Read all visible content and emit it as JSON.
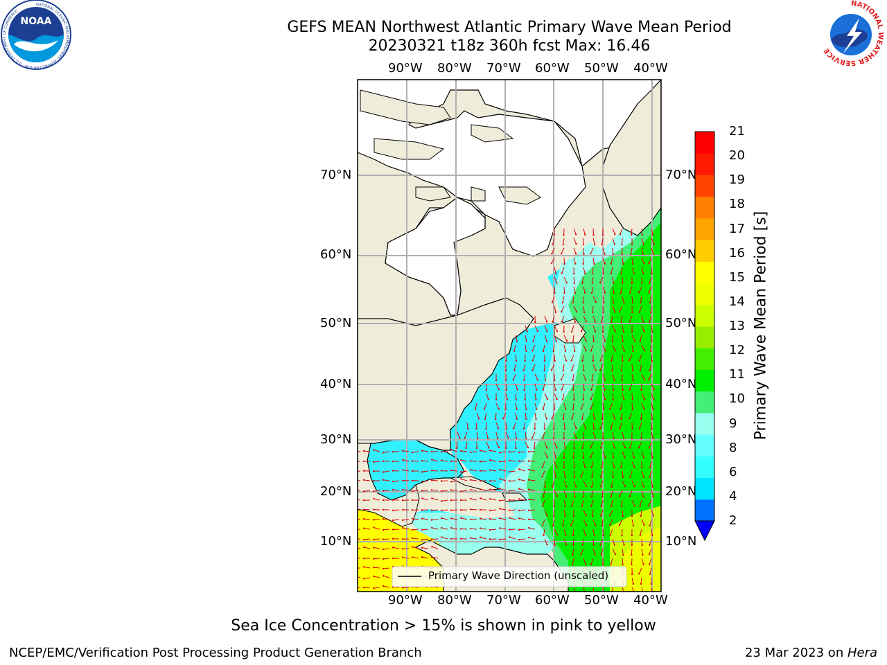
{
  "header": {
    "title": "GEFS MEAN Northwest Atlantic Primary Wave Mean Period",
    "subtitle": "20230321 t18z 360h fcst   Max: 16.46",
    "noaa_logo_text": "NOAA",
    "noaa_ring_text": "NATIONAL OCEANIC AND ATMOSPHERIC ADMINISTRATION · U.S. DEPARTMENT OF COMMERCE",
    "nws_ring_text": "NATIONAL WEATHER SERVICE"
  },
  "map": {
    "lon_ticks": [
      "90°W",
      "80°W",
      "70°W",
      "60°W",
      "50°W",
      "40°W"
    ],
    "lat_ticks": [
      "70°N",
      "60°N",
      "50°N",
      "40°N",
      "30°N",
      "20°N",
      "10°N"
    ],
    "legend_label": "Primary Wave Direction (unscaled)",
    "icons": [
      "noaa-logo-icon",
      "nws-logo-icon"
    ]
  },
  "colorbar": {
    "label": "Primary Wave Mean Period [s]",
    "ticks": [
      "2",
      "4",
      "6",
      "8",
      "9",
      "10",
      "11",
      "12",
      "13",
      "14",
      "15",
      "16",
      "17",
      "18",
      "19",
      "20",
      "21"
    ],
    "colors": [
      "#0070ff",
      "#00e5ff",
      "#33ffff",
      "#66ffff",
      "#99ffee",
      "#44ee77",
      "#00ee00",
      "#44ee00",
      "#99ee00",
      "#ccff00",
      "#eeff00",
      "#ffff00",
      "#ffcc00",
      "#ffa500",
      "#ff7f00",
      "#ff4400",
      "#ff1a00",
      "#ff0000"
    ],
    "extend_color": "#0000ff"
  },
  "footer": {
    "note": "Sea Ice Concentration > 15% is shown in pink to yellow",
    "left": "NCEP/EMC/Verification Post Processing Product Generation Branch",
    "right_prefix": "23 Mar 2023 on ",
    "right_host": "Hera"
  }
}
